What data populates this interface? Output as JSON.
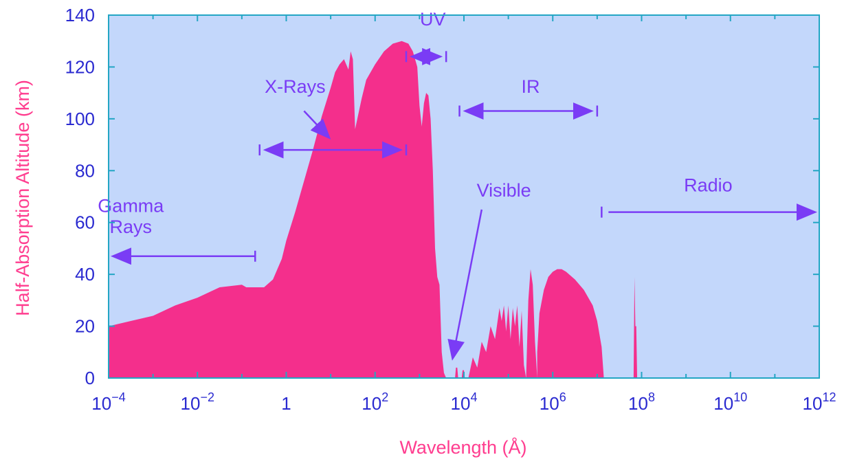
{
  "chart_data": {
    "type": "area",
    "title": "",
    "xlabel": "Wavelength (Å)",
    "ylabel": "Half-Absorption Altitude (km)",
    "x_scale": "log",
    "xlim": [
      0.0001,
      1000000000000
    ],
    "ylim": [
      0,
      140
    ],
    "x_tick_labels": [
      {
        "base": "10",
        "exp": "−4"
      },
      {
        "base": "10",
        "exp": "−2"
      },
      {
        "base": "1",
        "exp": ""
      },
      {
        "base": "10",
        "exp": "2"
      },
      {
        "base": "10",
        "exp": "4"
      },
      {
        "base": "10",
        "exp": "6"
      },
      {
        "base": "10",
        "exp": "8"
      },
      {
        "base": "10",
        "exp": "10"
      },
      {
        "base": "10",
        "exp": "12"
      }
    ],
    "y_ticks": [
      0,
      20,
      40,
      60,
      80,
      100,
      120,
      140
    ],
    "grid": false,
    "colors": {
      "plot_bg": "#c3d7fb",
      "fill": "#f42f8c",
      "frame": "#23a6c4",
      "annotation": "#7a3cf5",
      "tick_text": "#2a2ad0",
      "axis_label": "#ff3d8f"
    },
    "series": [
      {
        "x_log10": [
          -4,
          -3.5,
          -3,
          -2.5,
          -2,
          -1.5,
          -1,
          -0.9,
          -0.7,
          -0.5,
          -0.3,
          -0.1,
          0,
          0.2,
          0.4,
          0.6,
          0.8,
          1,
          1.1,
          1.2,
          1.3,
          1.4,
          1.45,
          1.5,
          1.55,
          1.6,
          1.7,
          1.8,
          2,
          2.2,
          2.4,
          2.6,
          2.75,
          2.85,
          2.95,
          3.0,
          3.05,
          3.1,
          3.15,
          3.2,
          3.25,
          3.3,
          3.35,
          3.4,
          3.45,
          3.5,
          3.55,
          3.6
        ],
        "y": [
          20,
          22,
          24,
          28,
          31,
          35,
          36,
          35,
          35,
          35,
          38,
          46,
          53,
          64,
          76,
          88,
          101,
          112,
          118,
          121,
          123,
          119,
          126,
          123,
          96,
          100,
          108,
          115,
          121,
          126,
          129,
          130,
          129,
          126,
          120,
          105,
          97,
          106,
          110,
          109,
          100,
          80,
          50,
          39,
          36,
          10,
          2,
          0
        ]
      }
    ],
    "visible_band": [
      {
        "x_log10": [
          3.8,
          3.82,
          3.85,
          3.87
        ],
        "y": [
          0,
          4,
          4,
          0
        ]
      },
      {
        "x_log10": [
          3.95,
          3.97,
          4.0,
          4.02
        ],
        "y": [
          0,
          3,
          3,
          0
        ]
      }
    ],
    "ir_band": [
      {
        "x_log10": [
          4.1,
          4.2,
          4.3,
          4.4,
          4.5,
          4.6,
          4.7,
          4.8,
          4.85,
          4.9,
          4.95,
          5.0,
          5.05,
          5.1,
          5.15,
          5.2,
          5.25,
          5.3,
          5.35,
          5.4,
          5.45,
          5.5,
          5.55,
          5.6,
          5.65
        ],
        "y": [
          0,
          8,
          4,
          14,
          10,
          20,
          15,
          27,
          22,
          28,
          18,
          28,
          15,
          27,
          20,
          28,
          12,
          26,
          5,
          0,
          30,
          42,
          36,
          14,
          0
        ]
      },
      {
        "x_log10": [
          5.65,
          5.7,
          5.8,
          5.9,
          6.0,
          6.1,
          6.2,
          6.3,
          6.5,
          6.7,
          6.9,
          7.0,
          7.1,
          7.15
        ],
        "y": [
          10,
          25,
          34,
          39,
          41,
          42,
          42,
          41,
          38,
          34,
          28,
          22,
          12,
          0
        ]
      },
      {
        "x_log10": [
          7.82,
          7.84,
          7.86,
          7.88,
          7.9
        ],
        "y": [
          0,
          39,
          20,
          20,
          0
        ]
      }
    ],
    "annotations": [
      {
        "text": "Gamma",
        "x_log10": -3.5,
        "y": 64
      },
      {
        "text": "Rays",
        "x_log10": -3.5,
        "y": 56
      },
      {
        "text": "X-Rays",
        "x_log10": 0.2,
        "y": 110
      },
      {
        "text": "UV",
        "x_log10": 3.3,
        "y": 136
      },
      {
        "text": "IR",
        "x_log10": 5.5,
        "y": 110
      },
      {
        "text": "Visible",
        "x_log10": 4.9,
        "y": 70
      },
      {
        "text": "Radio",
        "x_log10": 9.5,
        "y": 72
      }
    ],
    "bands": [
      {
        "name_ref": "Gamma Rays",
        "from_log10": -4,
        "to_log10": -0.7,
        "y": 47,
        "arrow": "left"
      },
      {
        "name_ref": "X-Rays",
        "from_log10": -0.6,
        "to_log10": 2.7,
        "y": 88,
        "arrow": "both"
      },
      {
        "name_ref": "UV",
        "from_log10": 2.7,
        "to_log10": 3.6,
        "y": 124,
        "arrow": "both"
      },
      {
        "name_ref": "IR",
        "from_log10": 3.9,
        "to_log10": 7.0,
        "y": 103,
        "arrow": "both"
      },
      {
        "name_ref": "Radio",
        "from_log10": 7.1,
        "to_log10": 12,
        "y": 64,
        "arrow": "right"
      }
    ]
  }
}
